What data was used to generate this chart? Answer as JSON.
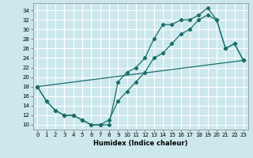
{
  "xlabel": "Humidex (Indice chaleur)",
  "bg_color": "#cce8ec",
  "line_color": "#1a6e6a",
  "grid_color": "#ffffff",
  "xlim": [
    -0.5,
    23.5
  ],
  "ylim": [
    9,
    35.5
  ],
  "xticks": [
    0,
    1,
    2,
    3,
    4,
    5,
    6,
    7,
    8,
    9,
    10,
    11,
    12,
    13,
    14,
    15,
    16,
    17,
    18,
    19,
    20,
    21,
    22,
    23
  ],
  "yticks": [
    10,
    12,
    14,
    16,
    18,
    20,
    22,
    24,
    26,
    28,
    30,
    32,
    34
  ],
  "line1_x": [
    0,
    1,
    2,
    3,
    4,
    5,
    6,
    7,
    8,
    9,
    10,
    11,
    12,
    13,
    14,
    15,
    16,
    17,
    18,
    19,
    20,
    21,
    22,
    23
  ],
  "line1_y": [
    18,
    15,
    13,
    12,
    12,
    11,
    10,
    10,
    10,
    19,
    21,
    22,
    24,
    28,
    31,
    31,
    32,
    32,
    33,
    34.5,
    32,
    26,
    27,
    23.5
  ],
  "line2_x": [
    0,
    1,
    2,
    3,
    4,
    5,
    6,
    7,
    8,
    9,
    10,
    11,
    12,
    13,
    14,
    15,
    16,
    17,
    18,
    19,
    20,
    21,
    22,
    23
  ],
  "line2_y": [
    18,
    15,
    13,
    12,
    12,
    11,
    10,
    10,
    11,
    15,
    17,
    19,
    21,
    24,
    25,
    27,
    29,
    30,
    32,
    33,
    32,
    26,
    27,
    23.5
  ],
  "line3_x": [
    0,
    23
  ],
  "line3_y": [
    18,
    23.5
  ]
}
